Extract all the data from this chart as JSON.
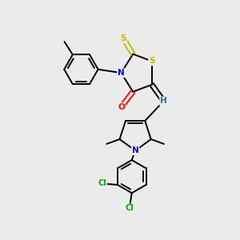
{
  "background_color": "#ebebeb",
  "colors": {
    "C": "#000000",
    "N": "#0000ee",
    "O": "#ff0000",
    "S": "#bbbb00",
    "Cl": "#00aa00",
    "H": "#008888"
  },
  "figsize": [
    3.0,
    3.0
  ],
  "dpi": 100
}
